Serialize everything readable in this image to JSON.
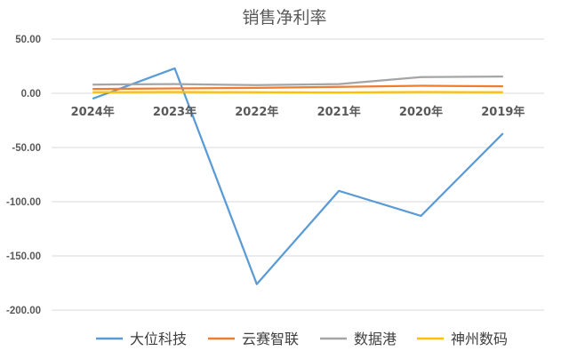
{
  "chart_data": {
    "type": "line",
    "title": "销售净利率",
    "categories": [
      "2024年",
      "2023年",
      "2022年",
      "2021年",
      "2020年",
      "2019年"
    ],
    "ylim": [
      -200,
      50
    ],
    "yticks": [
      "50.00",
      "0.00",
      "-50.00",
      "-100.00",
      "-150.00",
      "-200.00"
    ],
    "ytick_values": [
      50,
      0,
      -50,
      -100,
      -150,
      -200
    ],
    "grid": true,
    "legend_position": "bottom",
    "series": [
      {
        "name": "大位科技",
        "color": "#5b9bd5",
        "values": [
          -5,
          23,
          -176,
          -90,
          -113,
          -37
        ]
      },
      {
        "name": "云赛智联",
        "color": "#ed7d31",
        "values": [
          4,
          4.5,
          5,
          6,
          7,
          6.5
        ]
      },
      {
        "name": "数据港",
        "color": "#a5a5a5",
        "values": [
          8,
          8.5,
          7.5,
          8.5,
          15,
          15.5
        ]
      },
      {
        "name": "神州数码",
        "color": "#ffc000",
        "values": [
          1,
          1.2,
          1,
          0.8,
          1.2,
          1.1
        ]
      }
    ]
  }
}
